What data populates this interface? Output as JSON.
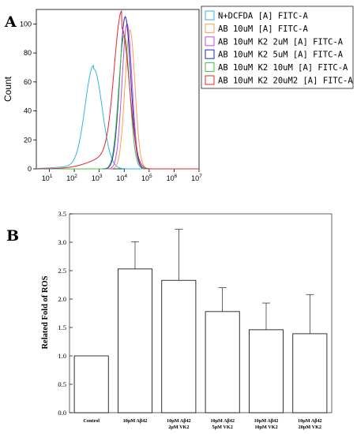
{
  "panels": [
    {
      "letter": "A"
    },
    {
      "letter": "B"
    }
  ],
  "chart_data": [
    {
      "type": "line",
      "ylabel": "Count",
      "xlabel": "",
      "xscale": "log",
      "xlim": [
        3,
        10000000
      ],
      "ylim": [
        0,
        110
      ],
      "yticks": [
        "0",
        "20",
        "40",
        "60",
        "80",
        "100"
      ],
      "xticks": [
        {
          "base": "10",
          "exp": "1"
        },
        {
          "base": "10",
          "exp": "2"
        },
        {
          "base": "10",
          "exp": "3"
        },
        {
          "base": "10",
          "exp": "4"
        },
        {
          "base": "10",
          "exp": "5"
        },
        {
          "base": "10",
          "exp": "6"
        },
        {
          "base": "10",
          "exp": "7"
        }
      ],
      "legend_position": "top-right",
      "series": [
        {
          "name": "N+DCFDA [A] FITC-A",
          "color": "#33b5e5",
          "peak_x": 600,
          "peak_y": 69,
          "width": 0.34,
          "tail": 2.5
        },
        {
          "name": "AB 10uM [A] FITC-A",
          "color": "#f5a35a",
          "peak_x": 17000,
          "peak_y": 96,
          "width": 0.2,
          "tail": 0
        },
        {
          "name": "AB 10uM K2 2uM [A] FITC-A",
          "color": "#c64fd8",
          "peak_x": 13000,
          "peak_y": 100,
          "width": 0.2,
          "tail": 0
        },
        {
          "name": "AB 10uM K2 5uM [A] FITC-A",
          "color": "#2222cc",
          "peak_x": 11000,
          "peak_y": 105,
          "width": 0.22,
          "tail": 0
        },
        {
          "name": "AB 10uM K2 10uM [A] FITC-A",
          "color": "#3cc23c",
          "peak_x": 10000,
          "peak_y": 92,
          "width": 0.22,
          "tail": 0
        },
        {
          "name": "AB 10uM K2 20uM2 [A] FITC-A",
          "color": "#e8262e",
          "peak_x": 8000,
          "peak_y": 97,
          "width": 0.3,
          "tail": 12
        }
      ]
    },
    {
      "type": "bar",
      "ylabel": "Related Fold of ROS",
      "xlabel": "",
      "ylim": [
        0,
        3.5
      ],
      "yticks": [
        "0.0",
        "0.5",
        "1.0",
        "1.5",
        "2.0",
        "2.5",
        "3.0",
        "3.5"
      ],
      "categories": [
        [
          "Control"
        ],
        [
          "10μM Aβ42"
        ],
        [
          "10μM Aβ42",
          "2μM VK2"
        ],
        [
          "10μM Aβ42",
          "5μM VK2"
        ],
        [
          "10μM Aβ42",
          "10μM VK2"
        ],
        [
          "10μM Aβ42",
          "20μM VK2"
        ]
      ],
      "values": [
        1.0,
        2.53,
        2.33,
        1.78,
        1.46,
        1.39
      ],
      "errors": [
        0,
        0.48,
        0.9,
        0.42,
        0.47,
        0.69
      ]
    }
  ]
}
